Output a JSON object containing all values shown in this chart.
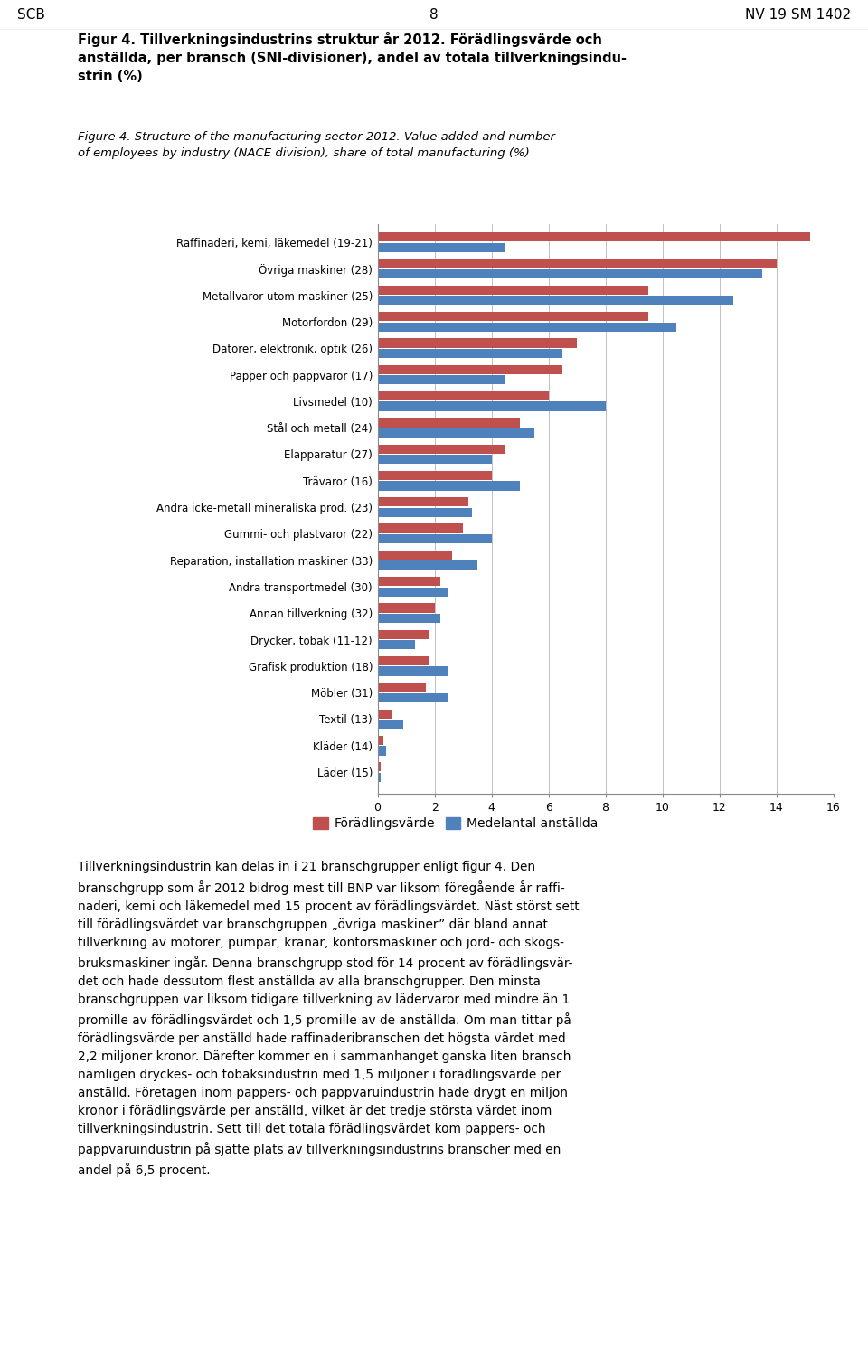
{
  "categories": [
    "Raffinaderi, kemi, läkemedel (19-21)",
    "Övriga maskiner (28)",
    "Metallvaror utom maskiner (25)",
    "Motorfordon (29)",
    "Datorer, elektronik, optik (26)",
    "Papper och pappvaror (17)",
    "Livsmedel (10)",
    "Stål och metall (24)",
    "Elapparatur (27)",
    "Trävaror (16)",
    "Andra icke-metall mineraliska prod. (23)",
    "Gummi- och plastvaror (22)",
    "Reparation, installation maskiner (33)",
    "Andra transportmedel (30)",
    "Annan tillverkning (32)",
    "Drycker, tobak (11-12)",
    "Grafisk produktion (18)",
    "Möbler (31)",
    "Textil (13)",
    "Kläder (14)",
    "Läder (15)"
  ],
  "foradlingsvarde": [
    15.2,
    14.0,
    9.5,
    9.5,
    7.0,
    6.5,
    6.0,
    5.0,
    4.5,
    4.0,
    3.2,
    3.0,
    2.6,
    2.2,
    2.0,
    1.8,
    1.8,
    1.7,
    0.5,
    0.2,
    0.1
  ],
  "medelantal": [
    4.5,
    13.5,
    12.5,
    10.5,
    6.5,
    4.5,
    8.0,
    5.5,
    4.0,
    5.0,
    3.3,
    4.0,
    3.5,
    2.5,
    2.2,
    1.3,
    2.5,
    2.5,
    0.9,
    0.3,
    0.1
  ],
  "color_foradling": "#C0504D",
  "color_medelantal": "#4F81BD",
  "legend_foradling": "Förädlingsvärde",
  "legend_medelantal": "Medelantal anställda",
  "xlim": [
    0,
    16
  ],
  "xticks": [
    0,
    2,
    4,
    6,
    8,
    10,
    12,
    14,
    16
  ],
  "header_left": "SCB",
  "header_center": "8",
  "header_right": "NV 19 SM 1402",
  "title_bold": "Figur 4. Tillverkningsindustrins struktur år 2012. Förädlingsvärde och\nanställda, per bransch (SNI-divisioner), andel av totala tillverkningsindu-\nstrin (%)",
  "title_italic": "Figure 4. Structure of the manufacturing sector 2012. Value added and number\nof employees by industry (NACE division), share of total manufacturing (%)",
  "body_text": "Tillverkningsindustrin kan delas in i 21 branschgrupper enligt figur 4. Den\nbranschgrupp som år 2012 bidrog mest till BNP var liksom föregående år raffi-\nnaderi, kemi och läkemedel med 15 procent av förädlingsvärdet. Näst störst sett\ntill förädlingsvärdet var branschgruppen „övriga maskiner” där bland annat\ntillverkning av motorer, pumpar, kranar, kontorsmaskiner och jord- och skogs-\nbruksmaskiner ingår. Denna branschgrupp stod för 14 procent av förädlingsvär-\ndet och hade dessutom flest anställda av alla branschgrupper. Den minsta\nbranschgruppen var liksom tidigare tillverkning av lädervaror med mindre än 1\npromille av förädlingsvärdet och 1,5 promille av de anställda. Om man tittar på\nförädlingsvärde per anställd hade raffinaderibranschen det högsta värdet med\n2,2 miljoner kronor. Därefter kommer en i sammanhanget ganska liten bransch\nnämligen dryckes- och tobaksindustrin med 1,5 miljoner i förädlingsvärde per\nanställd. Företagen inom pappers- och pappvaruindustrin hade drygt en miljon\nkronor i förädlingsvärde per anställd, vilket är det tredje största värdet inom\ntillverkningsindustrin. Sett till det totala förädlingsvärdet kom pappers- och\npappvaruindustrin på sjätte plats av tillverkningsindustrins branscher med en\nandel på 6,5 procent."
}
